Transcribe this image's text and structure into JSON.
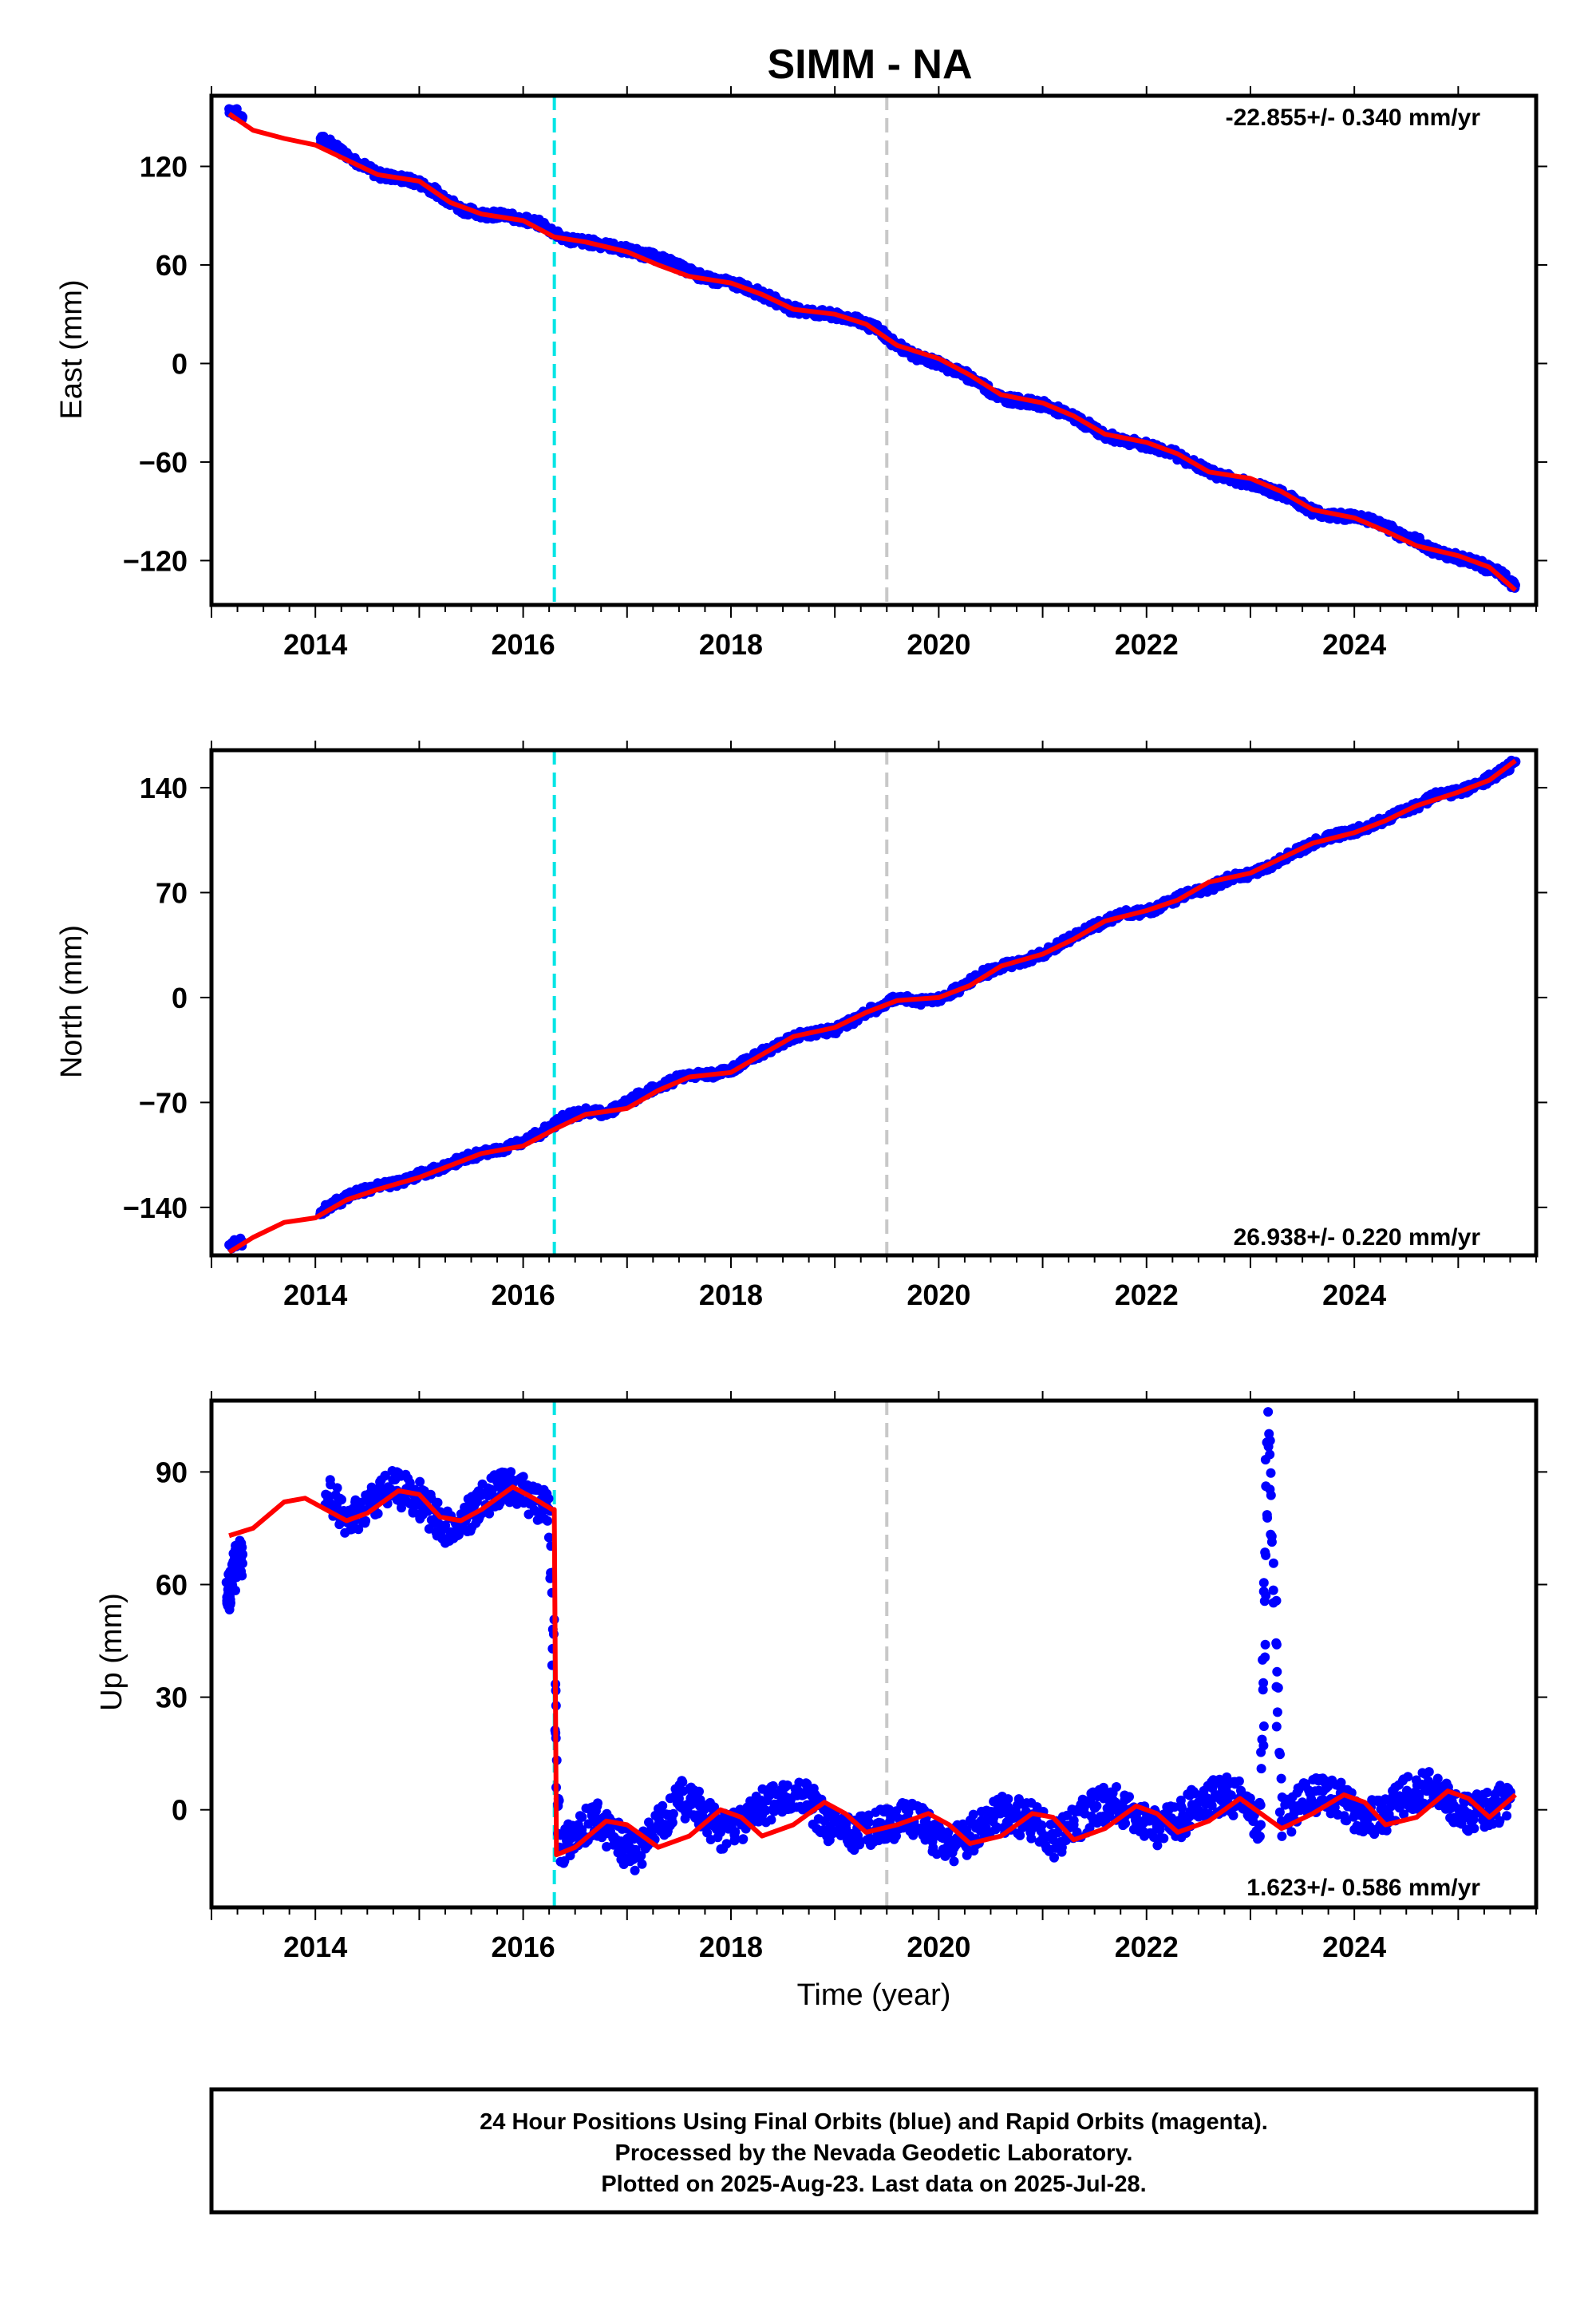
{
  "figure": {
    "title": "SIMM - NA",
    "xlabel": "Time (year)",
    "footer": [
      "24 Hour Positions Using Final Orbits (blue) and Rapid Orbits (magenta).",
      "Processed by the Nevada Geodetic Laboratory.",
      "Plotted on 2025-Aug-23. Last data on 2025-Jul-28."
    ]
  },
  "colors": {
    "data": "#0000ff",
    "model": "#ff0000",
    "event_line_1": "#00e5e5",
    "event_line_2": "#c8c8c8",
    "frame": "#000000"
  },
  "chart_data": [
    {
      "type": "scatter",
      "component": "East",
      "ylabel": "East (mm)",
      "rate_label": "-22.855+/- 0.340 mm/yr",
      "rate_position": "top-right",
      "xlim": [
        2013.0,
        2025.75
      ],
      "ylim": [
        -147,
        163
      ],
      "yticks": [
        -120,
        -60,
        0,
        60,
        120
      ],
      "yticklabels": [
        "−120",
        "−60",
        "0",
        "60",
        "120"
      ],
      "xticks": [
        2014,
        2016,
        2018,
        2020,
        2022,
        2024
      ],
      "xticklabels": [
        "2014",
        "2016",
        "2018",
        "2020",
        "2022",
        "2024"
      ],
      "event_lines": [
        2016.3,
        2019.5
      ],
      "data_points": {
        "x": [
          2013.17,
          2013.3,
          2014.05,
          2014.2,
          2014.4,
          2014.6,
          2014.8,
          2015.0,
          2015.2,
          2015.4,
          2015.6,
          2015.8,
          2016.0,
          2016.2,
          2016.4,
          2016.6,
          2016.8,
          2017.0,
          2017.2,
          2017.4,
          2017.6,
          2017.8,
          2018.0,
          2018.2,
          2018.4,
          2018.6,
          2018.8,
          2019.0,
          2019.2,
          2019.4,
          2019.6,
          2019.8,
          2020.0,
          2020.2,
          2020.4,
          2020.6,
          2020.8,
          2021.0,
          2021.2,
          2021.4,
          2021.6,
          2021.8,
          2022.0,
          2022.2,
          2022.4,
          2022.6,
          2022.8,
          2023.0,
          2023.2,
          2023.4,
          2023.6,
          2023.8,
          2024.0,
          2024.2,
          2024.4,
          2024.6,
          2024.8,
          2025.0,
          2025.2,
          2025.4,
          2025.55
        ],
        "y": [
          155,
          150,
          137,
          132,
          123,
          115,
          113,
          110,
          103,
          94,
          91,
          90,
          88,
          84,
          76,
          74,
          72,
          69,
          66,
          62,
          56,
          51,
          49,
          45,
          39,
          33,
          31,
          29,
          27,
          21,
          11,
          4,
          0,
          -5,
          -12,
          -21,
          -23,
          -25,
          -30,
          -36,
          -44,
          -47,
          -50,
          -53,
          -59,
          -66,
          -70,
          -73,
          -77,
          -82,
          -90,
          -93,
          -93,
          -96,
          -103,
          -108,
          -115,
          -118,
          -122,
          -128,
          -135
        ]
      },
      "model_line": {
        "x": [
          2013.17,
          2013.4,
          2013.7,
          2014.0,
          2014.3,
          2014.6,
          2015.0,
          2015.3,
          2015.6,
          2016.0,
          2016.3,
          2016.6,
          2017.0,
          2017.3,
          2017.6,
          2018.0,
          2018.3,
          2018.6,
          2019.0,
          2019.3,
          2019.6,
          2020.0,
          2020.3,
          2020.6,
          2021.0,
          2021.3,
          2021.6,
          2022.0,
          2022.3,
          2022.6,
          2023.0,
          2023.3,
          2023.6,
          2024.0,
          2024.3,
          2024.6,
          2025.0,
          2025.3,
          2025.55
        ],
        "y": [
          152,
          142,
          137,
          133,
          124,
          115,
          111,
          98,
          91,
          87,
          77,
          74,
          68,
          60,
          53,
          49,
          42,
          33,
          30,
          24,
          11,
          3,
          -7,
          -19,
          -24,
          -32,
          -43,
          -48,
          -55,
          -66,
          -70,
          -78,
          -89,
          -94,
          -102,
          -111,
          -117,
          -124,
          -138
        ]
      }
    },
    {
      "type": "scatter",
      "component": "North",
      "ylabel": "North (mm)",
      "rate_label": "26.938+/- 0.220 mm/yr",
      "rate_position": "bottom-right",
      "xlim": [
        2013.0,
        2025.75
      ],
      "ylim": [
        -172,
        165
      ],
      "yticks": [
        -140,
        -70,
        0,
        70,
        140
      ],
      "yticklabels": [
        "−140",
        "−70",
        "0",
        "70",
        "140"
      ],
      "xticks": [
        2014,
        2016,
        2018,
        2020,
        2022,
        2024
      ],
      "xticklabels": [
        "2014",
        "2016",
        "2018",
        "2020",
        "2022",
        "2024"
      ],
      "event_lines": [
        2016.3,
        2019.5
      ],
      "data_points": {
        "x": [
          2013.17,
          2013.3,
          2014.05,
          2014.2,
          2014.4,
          2014.6,
          2014.8,
          2015.0,
          2015.2,
          2015.4,
          2015.6,
          2015.8,
          2016.0,
          2016.2,
          2016.4,
          2016.6,
          2016.8,
          2017.0,
          2017.2,
          2017.4,
          2017.6,
          2017.8,
          2018.0,
          2018.2,
          2018.4,
          2018.6,
          2018.8,
          2019.0,
          2019.2,
          2019.4,
          2019.6,
          2019.8,
          2020.0,
          2020.2,
          2020.4,
          2020.6,
          2020.8,
          2021.0,
          2021.2,
          2021.4,
          2021.6,
          2021.8,
          2022.0,
          2022.2,
          2022.4,
          2022.6,
          2022.8,
          2023.0,
          2023.2,
          2023.4,
          2023.6,
          2023.8,
          2024.0,
          2024.2,
          2024.4,
          2024.6,
          2024.8,
          2025.0,
          2025.2,
          2025.4,
          2025.55
        ],
        "y": [
          -165,
          -163,
          -143,
          -137,
          -130,
          -126,
          -123,
          -118,
          -114,
          -108,
          -104,
          -102,
          -96,
          -89,
          -80,
          -76,
          -77,
          -70,
          -62,
          -57,
          -51,
          -52,
          -48,
          -40,
          -34,
          -26,
          -23,
          -22,
          -14,
          -7,
          0,
          -3,
          -1,
          6,
          15,
          21,
          24,
          29,
          37,
          44,
          51,
          56,
          57,
          63,
          70,
          73,
          80,
          82,
          88,
          96,
          103,
          108,
          111,
          116,
          122,
          128,
          135,
          137,
          142,
          150,
          157
        ]
      },
      "model_line": {
        "x": [
          2013.17,
          2013.4,
          2013.7,
          2014.0,
          2014.3,
          2014.6,
          2015.0,
          2015.3,
          2015.6,
          2016.0,
          2016.3,
          2016.6,
          2017.0,
          2017.3,
          2017.6,
          2018.0,
          2018.3,
          2018.6,
          2019.0,
          2019.3,
          2019.6,
          2020.0,
          2020.3,
          2020.6,
          2021.0,
          2021.3,
          2021.6,
          2022.0,
          2022.3,
          2022.6,
          2023.0,
          2023.3,
          2023.6,
          2024.0,
          2024.3,
          2024.6,
          2025.0,
          2025.3,
          2025.55
        ],
        "y": [
          -170,
          -160,
          -150,
          -147,
          -135,
          -128,
          -120,
          -112,
          -104,
          -99,
          -88,
          -78,
          -74,
          -62,
          -53,
          -50,
          -38,
          -26,
          -20,
          -10,
          -2,
          0,
          8,
          21,
          29,
          39,
          51,
          58,
          65,
          77,
          83,
          93,
          103,
          110,
          118,
          128,
          137,
          145,
          158
        ]
      }
    },
    {
      "type": "scatter",
      "component": "Up",
      "ylabel": "Up (mm)",
      "rate_label": "1.623+/- 0.586 mm/yr",
      "rate_position": "bottom-right",
      "xlim": [
        2013.0,
        2025.75
      ],
      "ylim": [
        -26,
        109
      ],
      "yticks": [
        0,
        30,
        60,
        90
      ],
      "yticklabels": [
        "0",
        "30",
        "60",
        "90"
      ],
      "xticks": [
        2014,
        2016,
        2018,
        2020,
        2022,
        2024
      ],
      "xticklabels": [
        "2014",
        "2016",
        "2018",
        "2020",
        "2022",
        "2024"
      ],
      "event_lines": [
        2016.3,
        2019.5
      ],
      "data_points": {
        "x": [
          2013.15,
          2013.2,
          2013.25,
          2013.3,
          2014.1,
          2014.3,
          2014.5,
          2014.7,
          2014.9,
          2015.1,
          2015.3,
          2015.5,
          2015.7,
          2015.9,
          2016.1,
          2016.25,
          2016.35,
          2016.5,
          2016.7,
          2016.9,
          2017.1,
          2017.3,
          2017.5,
          2017.7,
          2017.9,
          2018.1,
          2018.3,
          2018.5,
          2018.7,
          2018.9,
          2019.1,
          2019.3,
          2019.5,
          2019.7,
          2019.9,
          2020.1,
          2020.3,
          2020.5,
          2020.7,
          2020.9,
          2021.1,
          2021.3,
          2021.5,
          2021.7,
          2021.9,
          2022.1,
          2022.3,
          2022.5,
          2022.7,
          2022.9,
          2023.1,
          2023.17,
          2023.3,
          2023.5,
          2023.7,
          2023.9,
          2024.1,
          2024.3,
          2024.5,
          2024.7,
          2024.9,
          2025.1,
          2025.3,
          2025.5
        ],
        "y": [
          55,
          62,
          66,
          68,
          84,
          78,
          80,
          86,
          85,
          80,
          74,
          79,
          85,
          87,
          82,
          80,
          -10,
          -6,
          -2,
          -8,
          -12,
          -4,
          3,
          1,
          -6,
          -4,
          1,
          2,
          4,
          -3,
          -7,
          -5,
          -4,
          -2,
          -5,
          -10,
          -7,
          -2,
          -1,
          -3,
          -8,
          -4,
          1,
          2,
          -2,
          -5,
          -3,
          2,
          4,
          3,
          -4,
          106,
          -3,
          2,
          5,
          2,
          -3,
          -1,
          4,
          6,
          2,
          -1,
          0,
          3
        ]
      },
      "model_line": {
        "x": [
          2013.17,
          2013.4,
          2013.7,
          2013.9,
          2014.1,
          2014.3,
          2014.5,
          2014.8,
          2015.0,
          2015.2,
          2015.4,
          2015.6,
          2015.9,
          2016.1,
          2016.28,
          2016.3,
          2016.32,
          2016.5,
          2016.8,
          2017.0,
          2017.3,
          2017.6,
          2017.9,
          2018.1,
          2018.3,
          2018.6,
          2018.9,
          2019.1,
          2019.3,
          2019.6,
          2019.9,
          2020.1,
          2020.3,
          2020.6,
          2020.9,
          2021.1,
          2021.3,
          2021.6,
          2021.9,
          2022.1,
          2022.3,
          2022.6,
          2022.9,
          2023.1,
          2023.3,
          2023.6,
          2023.9,
          2024.1,
          2024.3,
          2024.6,
          2024.9,
          2025.1,
          2025.3,
          2025.55
        ],
        "y": [
          73,
          75,
          82,
          83,
          80,
          77,
          79,
          85,
          84,
          78,
          77,
          80,
          86,
          83,
          80,
          80,
          -12,
          -10,
          -3,
          -4,
          -10,
          -7,
          0,
          -2,
          -7,
          -4,
          2,
          -1,
          -6,
          -4,
          -1,
          -4,
          -9,
          -7,
          -1,
          -2,
          -8,
          -5,
          1,
          -1,
          -6,
          -3,
          3,
          -1,
          -5,
          -1,
          4,
          2,
          -4,
          -2,
          5,
          3,
          -2,
          4
        ]
      }
    }
  ]
}
